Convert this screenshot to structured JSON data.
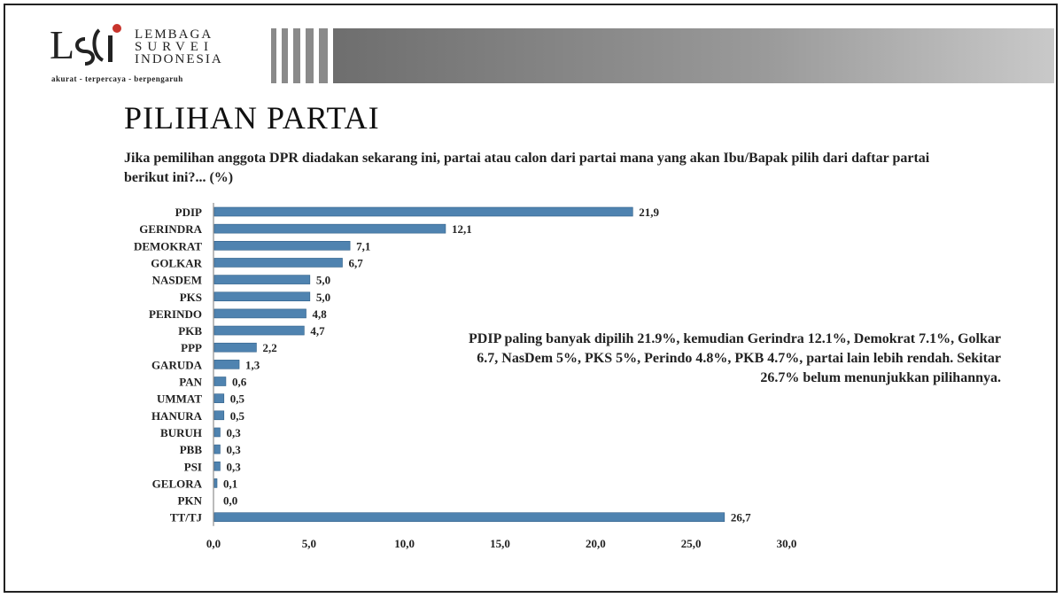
{
  "logo": {
    "line1": "LEMBAGA",
    "line2": "SURVEI",
    "line3": "INDONESIA",
    "tagline": "akurat - terpercaya - berpengaruh",
    "mark_icon": "lsi-logo-mark"
  },
  "slide": {
    "title": "PILIHAN PARTAI",
    "question": "Jika pemilihan anggota DPR diadakan sekarang ini, partai atau calon dari partai mana yang akan Ibu/Bapak pilih dari daftar partai berikut ini?... (%)",
    "note": "PDIP paling banyak dipilih 21.9%, kemudian Gerindra 12.1%, Demokrat 7.1%, Golkar 6.7, NasDem 5%, PKS 5%, Perindo 4.8%, PKB 4.7%, partai lain lebih rendah. Sekitar 26.7% belum menunjukkan pilihannya."
  },
  "colors": {
    "bar": "#4f83b0",
    "bar_edge": "#2f5f88",
    "band": "#8c8c8c"
  },
  "chart_data": {
    "type": "bar",
    "orientation": "horizontal",
    "categories": [
      "PDIP",
      "GERINDRA",
      "DEMOKRAT",
      "GOLKAR",
      "NASDEM",
      "PKS",
      "PERINDO",
      "PKB",
      "PPP",
      "GARUDA",
      "PAN",
      "UMMAT",
      "HANURA",
      "BURUH",
      "PBB",
      "PSI",
      "GELORA",
      "PKN",
      "TT/TJ"
    ],
    "values": [
      21.9,
      12.1,
      7.1,
      6.7,
      5.0,
      5.0,
      4.8,
      4.7,
      2.2,
      1.3,
      0.6,
      0.5,
      0.5,
      0.3,
      0.3,
      0.3,
      0.1,
      0.0,
      26.7
    ],
    "value_labels": [
      "21,9",
      "12,1",
      "7,1",
      "6,7",
      "5,0",
      "5,0",
      "4,8",
      "4,7",
      "2,2",
      "1,3",
      "0,6",
      "0,5",
      "0,5",
      "0,3",
      "0,3",
      "0,3",
      "0,1",
      "0,0",
      "26,7"
    ],
    "xlim": [
      0,
      30
    ],
    "xticks": [
      0,
      5,
      10,
      15,
      20,
      25,
      30
    ],
    "xtick_labels": [
      "0,0",
      "5,0",
      "10,0",
      "15,0",
      "20,0",
      "25,0",
      "30,0"
    ],
    "grid": false,
    "legend": "none"
  }
}
